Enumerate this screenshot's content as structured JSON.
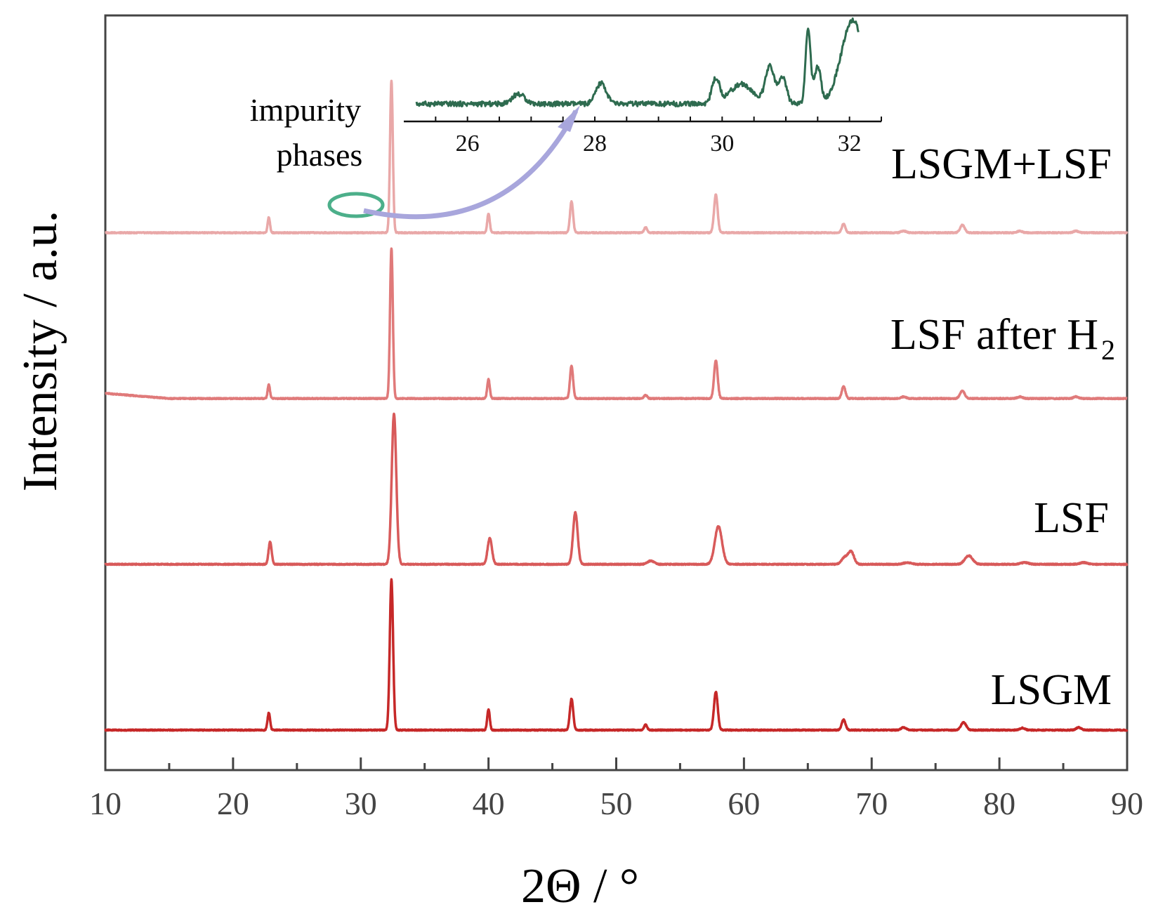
{
  "chart_data": {
    "type": "line",
    "title": "",
    "xlabel": "2Θ / °",
    "ylabel": "Intensity / a.u.",
    "xlim": [
      10,
      90
    ],
    "xticks": [
      10,
      20,
      30,
      40,
      50,
      60,
      70,
      80,
      90
    ],
    "grid": false,
    "series": [
      {
        "name": "LSGM",
        "label_main": "LSGM",
        "label_sub": "",
        "color": "#c62828",
        "baseline": 0,
        "peaks": [
          [
            22.8,
            0.1,
            0.1
          ],
          [
            32.4,
            0.87,
            0.13
          ],
          [
            40.0,
            0.12,
            0.1
          ],
          [
            46.5,
            0.18,
            0.13
          ],
          [
            52.3,
            0.03,
            0.12
          ],
          [
            57.8,
            0.22,
            0.15
          ],
          [
            67.8,
            0.06,
            0.15
          ],
          [
            72.5,
            0.015,
            0.2
          ],
          [
            77.2,
            0.045,
            0.2
          ],
          [
            81.8,
            0.012,
            0.2
          ],
          [
            86.2,
            0.015,
            0.2
          ]
        ],
        "hump": {
          "height": 0,
          "until": 10
        }
      },
      {
        "name": "LSF",
        "label_main": "LSF",
        "label_sub": "",
        "color": "#d85a5a",
        "baseline": 0.96,
        "peaks": [
          [
            22.9,
            0.13,
            0.12
          ],
          [
            32.6,
            0.87,
            0.18
          ],
          [
            40.1,
            0.15,
            0.17
          ],
          [
            46.8,
            0.3,
            0.18
          ],
          [
            52.7,
            0.02,
            0.25
          ],
          [
            58.0,
            0.22,
            0.28
          ],
          [
            67.9,
            0.04,
            0.25
          ],
          [
            68.4,
            0.07,
            0.22
          ],
          [
            72.8,
            0.01,
            0.3
          ],
          [
            77.6,
            0.05,
            0.3
          ],
          [
            82.0,
            0.01,
            0.3
          ],
          [
            86.6,
            0.01,
            0.3
          ]
        ],
        "hump": {
          "height": 0,
          "until": 10
        }
      },
      {
        "name": "LSF after H2",
        "label_main": "LSF after H",
        "label_sub": "2",
        "color": "#e07a7a",
        "baseline": 1.92,
        "peaks": [
          [
            22.8,
            0.08,
            0.09
          ],
          [
            32.4,
            0.87,
            0.11
          ],
          [
            40.0,
            0.11,
            0.1
          ],
          [
            46.5,
            0.19,
            0.12
          ],
          [
            52.3,
            0.02,
            0.12
          ],
          [
            57.8,
            0.22,
            0.14
          ],
          [
            67.8,
            0.07,
            0.14
          ],
          [
            72.5,
            0.01,
            0.2
          ],
          [
            77.1,
            0.045,
            0.18
          ],
          [
            81.6,
            0.01,
            0.2
          ],
          [
            86.0,
            0.01,
            0.2
          ]
        ],
        "hump": {
          "height": 0.03,
          "until": 15
        }
      },
      {
        "name": "LSGM+LSF",
        "label_main": "LSGM+LSF",
        "label_sub": "",
        "color": "#e9a8a8",
        "baseline": 2.88,
        "peaks": [
          [
            22.8,
            0.09,
            0.09
          ],
          [
            32.4,
            0.88,
            0.11
          ],
          [
            40.0,
            0.11,
            0.1
          ],
          [
            46.5,
            0.18,
            0.12
          ],
          [
            52.3,
            0.03,
            0.12
          ],
          [
            57.8,
            0.22,
            0.14
          ],
          [
            67.8,
            0.05,
            0.14
          ],
          [
            72.5,
            0.01,
            0.2
          ],
          [
            77.1,
            0.045,
            0.18
          ],
          [
            81.6,
            0.01,
            0.2
          ],
          [
            86.0,
            0.01,
            0.2
          ]
        ],
        "hump": {
          "height": 0,
          "until": 10
        }
      }
    ],
    "inset": {
      "xlim": [
        25,
        32.5
      ],
      "xticks": [
        26,
        28,
        30,
        32
      ],
      "color": "#2e6b4f",
      "peaks": [
        [
          26.8,
          0.08,
          0.1
        ],
        [
          28.1,
          0.17,
          0.08
        ],
        [
          29.9,
          0.2,
          0.06
        ],
        [
          30.3,
          0.16,
          0.18
        ],
        [
          30.75,
          0.3,
          0.07
        ],
        [
          30.95,
          0.22,
          0.06
        ],
        [
          31.35,
          0.6,
          0.04
        ],
        [
          31.5,
          0.3,
          0.05
        ],
        [
          32.05,
          0.68,
          0.18
        ]
      ],
      "annotation_line1": "impurity",
      "annotation_line2": "phases"
    }
  }
}
